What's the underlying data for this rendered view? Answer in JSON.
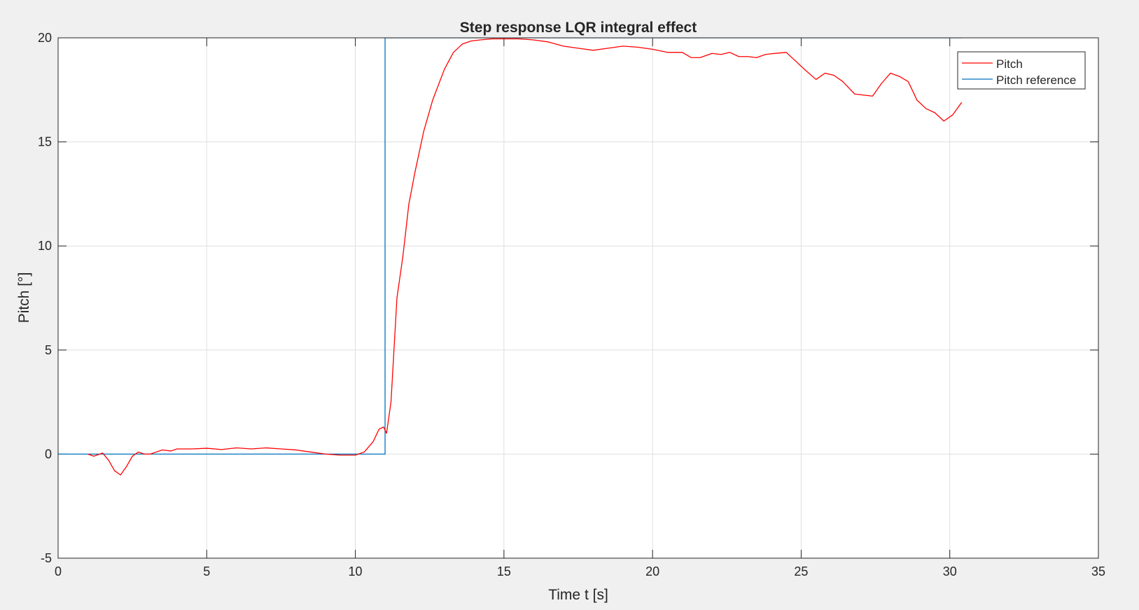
{
  "figure": {
    "background": "#f0f0f0",
    "axes_background": "#ffffff"
  },
  "chart_data": {
    "type": "line",
    "title": "Step response LQR integral effect",
    "xlabel": "Time t [s]",
    "ylabel": "Pitch [°]",
    "xlim": [
      0,
      35
    ],
    "ylim": [
      -5,
      20
    ],
    "xticks": [
      0,
      5,
      10,
      15,
      20,
      25,
      30,
      35
    ],
    "yticks": [
      -5,
      0,
      5,
      10,
      15,
      20
    ],
    "xtick_labels": [
      "0",
      "5",
      "10",
      "15",
      "20",
      "25",
      "30",
      "35"
    ],
    "ytick_labels": [
      "-5",
      "0",
      "5",
      "10",
      "15",
      "20"
    ],
    "grid": true,
    "legend_position": "top-right",
    "series": [
      {
        "name": "Pitch",
        "color": "#ff0000",
        "x": [
          1.0,
          1.2,
          1.5,
          1.7,
          1.9,
          2.1,
          2.3,
          2.5,
          2.7,
          2.9,
          3.1,
          3.3,
          3.5,
          3.8,
          4.0,
          4.5,
          5.0,
          5.5,
          6.0,
          6.5,
          7.0,
          7.5,
          8.0,
          8.5,
          9.0,
          9.5,
          10.0,
          10.3,
          10.6,
          10.8,
          10.95,
          11.05,
          11.2,
          11.4,
          11.6,
          11.8,
          12.0,
          12.3,
          12.6,
          13.0,
          13.3,
          13.6,
          13.9,
          14.2,
          14.6,
          15.0,
          15.5,
          16.0,
          16.5,
          17.0,
          17.5,
          18.0,
          18.5,
          19.0,
          19.5,
          20.0,
          20.5,
          21.0,
          21.3,
          21.6,
          22.0,
          22.3,
          22.6,
          22.9,
          23.2,
          23.5,
          23.8,
          24.1,
          24.5,
          24.8,
          25.1,
          25.5,
          25.8,
          26.1,
          26.4,
          26.8,
          27.1,
          27.4,
          27.7,
          28.0,
          28.3,
          28.6,
          28.9,
          29.2,
          29.5,
          29.8,
          30.1,
          30.4
        ],
        "y": [
          0.0,
          -0.1,
          0.05,
          -0.3,
          -0.8,
          -1.0,
          -0.6,
          -0.1,
          0.1,
          0.0,
          0.0,
          0.1,
          0.2,
          0.15,
          0.25,
          0.25,
          0.28,
          0.22,
          0.3,
          0.25,
          0.3,
          0.25,
          0.2,
          0.1,
          0.0,
          -0.05,
          -0.05,
          0.1,
          0.6,
          1.2,
          1.3,
          1.0,
          2.5,
          7.5,
          9.5,
          12.0,
          13.5,
          15.5,
          17.0,
          18.5,
          19.3,
          19.7,
          19.85,
          19.9,
          19.95,
          19.95,
          19.95,
          19.9,
          19.8,
          19.6,
          19.5,
          19.4,
          19.5,
          19.6,
          19.55,
          19.45,
          19.3,
          19.3,
          19.05,
          19.05,
          19.25,
          19.2,
          19.3,
          19.1,
          19.1,
          19.05,
          19.2,
          19.25,
          19.3,
          18.9,
          18.5,
          18.0,
          18.3,
          18.2,
          17.9,
          17.3,
          17.25,
          17.2,
          17.8,
          18.3,
          18.15,
          17.9,
          17.0,
          16.6,
          16.4,
          16.0,
          16.3,
          16.9
        ]
      },
      {
        "name": "Pitch reference",
        "color": "#0072bd",
        "x": [
          0,
          11,
          11,
          30.4
        ],
        "y": [
          0,
          0,
          20,
          20
        ]
      }
    ]
  }
}
